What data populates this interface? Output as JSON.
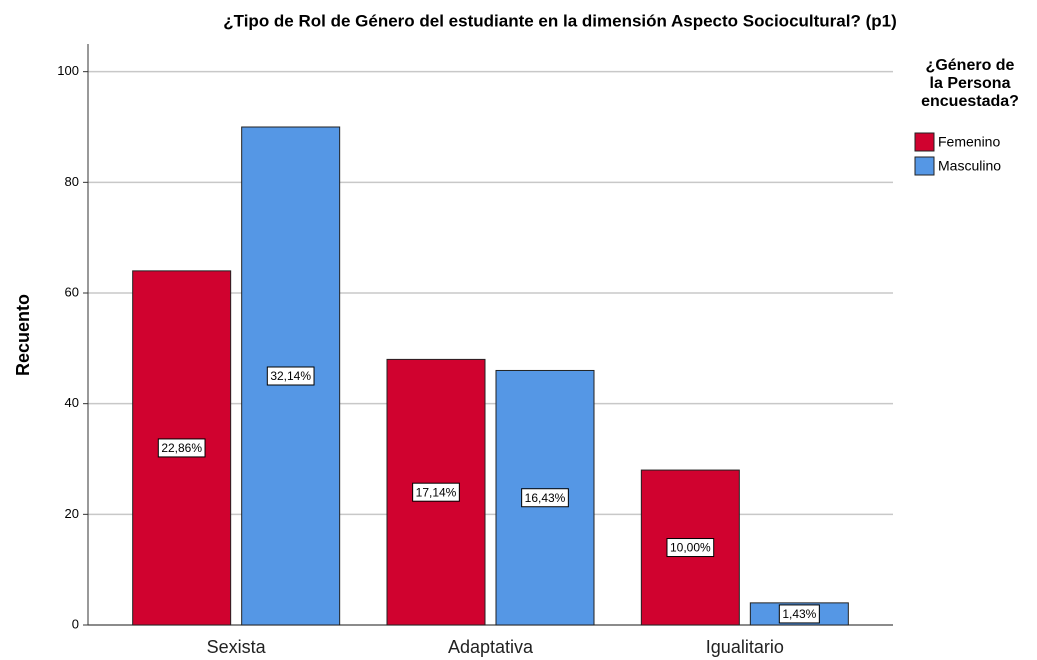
{
  "chart_data": {
    "type": "bar",
    "title": "¿Tipo de Rol de Género del estudiante en la dimensión Aspecto Sociocultural? (p1)",
    "y_label": "Recuento",
    "categories": [
      "Sexista",
      "Adaptativa",
      "Igualitario"
    ],
    "series": [
      {
        "name": "Femenino",
        "color": "#d0022f",
        "values": [
          64,
          48,
          28
        ],
        "percent_labels": [
          "22,86%",
          "17,14%",
          "10,00%"
        ]
      },
      {
        "name": "Masculino",
        "color": "#5597e5",
        "values": [
          90,
          46,
          4
        ],
        "percent_labels": [
          "32,14%",
          "16,43%",
          "1,43%"
        ]
      }
    ],
    "legend_title": [
      "¿Género de",
      "la Persona",
      "encuestada?"
    ],
    "legend_position": "right",
    "ylim": [
      0,
      105
    ],
    "yticks": [
      0,
      20,
      40,
      60,
      80,
      100
    ],
    "grid": true
  }
}
